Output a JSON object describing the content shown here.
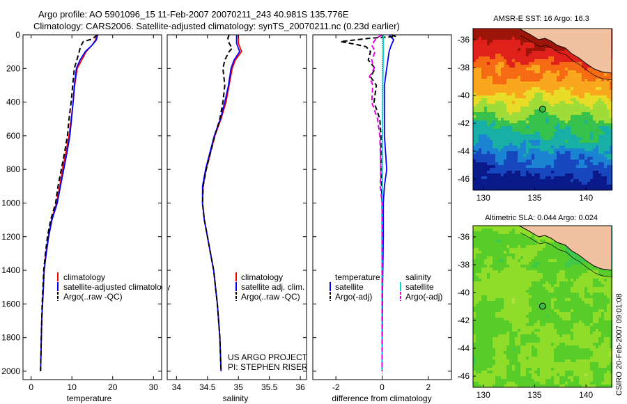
{
  "figure": {
    "title_line1": "Argo profile: AO 5901096_15 11-Feb-2007 20070211_243 40.981S 135.776E",
    "title_line2": "Climatology: CARS2006. Satellite-adjusted climatology: synTS_20070211.nc (0.23d earlier)",
    "credit": "CSIRO 20-Feb-2007 09:01:08"
  },
  "chart_data": [
    {
      "type": "line",
      "id": "temperature",
      "xlabel": "temperature",
      "ylabel": "",
      "xlim": [
        -2,
        32
      ],
      "ylim": [
        2050,
        0
      ],
      "xticks": [
        0,
        10,
        20,
        30
      ],
      "yticks": [
        0,
        200,
        400,
        600,
        800,
        1000,
        1200,
        1400,
        1600,
        1800,
        2000
      ],
      "legend": {
        "position": "lower-right",
        "entries": [
          "climatology",
          "satellite-adjusted climatology",
          "Argo(..raw -QC)"
        ]
      },
      "series": [
        {
          "name": "climatology",
          "color": "#ff0000",
          "dash": "solid",
          "points": [
            [
              16.0,
              0
            ],
            [
              15.8,
              30
            ],
            [
              15.0,
              60
            ],
            [
              13.5,
              100
            ],
            [
              12.4,
              150
            ],
            [
              11.3,
              200
            ],
            [
              10.7,
              300
            ],
            [
              10.3,
              400
            ],
            [
              9.8,
              500
            ],
            [
              9.3,
              600
            ],
            [
              8.5,
              700
            ],
            [
              7.7,
              800
            ],
            [
              7.0,
              900
            ],
            [
              6.2,
              1000
            ],
            [
              5.0,
              1100
            ],
            [
              4.2,
              1200
            ],
            [
              3.6,
              1300
            ],
            [
              3.2,
              1400
            ],
            [
              3.0,
              1500
            ],
            [
              2.8,
              1600
            ],
            [
              2.6,
              1700
            ],
            [
              2.5,
              1800
            ],
            [
              2.4,
              1900
            ],
            [
              2.3,
              2000
            ]
          ]
        },
        {
          "name": "satellite-adjusted climatology",
          "color": "#0000ff",
          "dash": "solid",
          "points": [
            [
              16.3,
              0
            ],
            [
              16.0,
              30
            ],
            [
              15.0,
              60
            ],
            [
              13.3,
              100
            ],
            [
              12.0,
              150
            ],
            [
              11.1,
              200
            ],
            [
              10.6,
              300
            ],
            [
              10.3,
              400
            ],
            [
              9.9,
              500
            ],
            [
              9.5,
              600
            ],
            [
              8.8,
              700
            ],
            [
              8.0,
              800
            ],
            [
              7.2,
              900
            ],
            [
              6.4,
              1000
            ],
            [
              5.1,
              1100
            ],
            [
              4.3,
              1200
            ],
            [
              3.7,
              1300
            ],
            [
              3.2,
              1400
            ],
            [
              3.0,
              1500
            ],
            [
              2.8,
              1600
            ],
            [
              2.6,
              1700
            ],
            [
              2.5,
              1800
            ],
            [
              2.4,
              1900
            ],
            [
              2.3,
              2000
            ]
          ]
        },
        {
          "name": "Argo(..raw -QC)",
          "color": "#000000",
          "dash": "7,4",
          "points": [
            [
              16.2,
              0
            ],
            [
              15.0,
              25
            ],
            [
              12.8,
              40
            ],
            [
              12.1,
              70
            ],
            [
              11.8,
              100
            ],
            [
              11.2,
              150
            ],
            [
              10.6,
              200
            ],
            [
              10.2,
              300
            ],
            [
              9.8,
              400
            ],
            [
              9.3,
              500
            ],
            [
              8.9,
              600
            ],
            [
              8.2,
              700
            ],
            [
              7.4,
              800
            ],
            [
              6.6,
              900
            ],
            [
              6.0,
              1000
            ],
            [
              4.8,
              1100
            ],
            [
              4.0,
              1200
            ],
            [
              3.5,
              1300
            ],
            [
              3.1,
              1400
            ],
            [
              2.9,
              1500
            ],
            [
              2.7,
              1600
            ],
            [
              2.6,
              1700
            ],
            [
              2.5,
              1800
            ],
            [
              2.4,
              1900
            ],
            [
              2.3,
              2000
            ]
          ]
        }
      ]
    },
    {
      "type": "line",
      "id": "salinity",
      "xlabel": "salinity",
      "ylabel": "",
      "xlim": [
        33.85,
        36.1
      ],
      "ylim": [
        2050,
        0
      ],
      "xticks": [
        34,
        34.5,
        35,
        35.5,
        36
      ],
      "xtick_labels": [
        "34",
        "34.5",
        "35",
        "35.5",
        "36"
      ],
      "yticks": [
        0,
        200,
        400,
        600,
        800,
        1000,
        1200,
        1400,
        1600,
        1800,
        2000
      ],
      "legend": {
        "position": "lower-right",
        "entries": [
          "climatology",
          "satellite adj. clim.",
          "Argo(..raw -QC)"
        ]
      },
      "annotation_lines": [
        "US ARGO PROJECT",
        "PI: STEPHEN RISER"
      ],
      "series": [
        {
          "name": "climatology",
          "color": "#ff0000",
          "dash": "solid",
          "points": [
            [
              35.0,
              0
            ],
            [
              35.0,
              50
            ],
            [
              35.05,
              100
            ],
            [
              34.95,
              150
            ],
            [
              34.9,
              200
            ],
            [
              34.85,
              300
            ],
            [
              34.8,
              400
            ],
            [
              34.72,
              500
            ],
            [
              34.62,
              600
            ],
            [
              34.55,
              700
            ],
            [
              34.48,
              800
            ],
            [
              34.43,
              900
            ],
            [
              34.42,
              1000
            ],
            [
              34.45,
              1100
            ],
            [
              34.5,
              1200
            ],
            [
              34.55,
              1300
            ],
            [
              34.6,
              1400
            ],
            [
              34.63,
              1500
            ],
            [
              34.66,
              1600
            ],
            [
              34.68,
              1700
            ],
            [
              34.7,
              1800
            ],
            [
              34.71,
              1900
            ],
            [
              34.72,
              2000
            ]
          ]
        },
        {
          "name": "satellite adj. clim.",
          "color": "#0000ff",
          "dash": "solid",
          "points": [
            [
              34.97,
              0
            ],
            [
              34.97,
              50
            ],
            [
              35.02,
              100
            ],
            [
              34.93,
              150
            ],
            [
              34.88,
              200
            ],
            [
              34.84,
              300
            ],
            [
              34.78,
              400
            ],
            [
              34.71,
              500
            ],
            [
              34.61,
              600
            ],
            [
              34.54,
              700
            ],
            [
              34.47,
              800
            ],
            [
              34.42,
              900
            ],
            [
              34.42,
              1000
            ],
            [
              34.45,
              1100
            ],
            [
              34.5,
              1200
            ],
            [
              34.55,
              1300
            ],
            [
              34.6,
              1400
            ],
            [
              34.63,
              1500
            ],
            [
              34.66,
              1600
            ],
            [
              34.68,
              1700
            ],
            [
              34.7,
              1800
            ],
            [
              34.71,
              1900
            ],
            [
              34.72,
              2000
            ]
          ]
        },
        {
          "name": "Argo(..raw -QC)",
          "color": "#000000",
          "dash": "7,4",
          "points": [
            [
              34.85,
              0
            ],
            [
              34.83,
              20
            ],
            [
              34.85,
              50
            ],
            [
              34.9,
              80
            ],
            [
              34.85,
              100
            ],
            [
              34.78,
              150
            ],
            [
              34.75,
              200
            ],
            [
              34.78,
              300
            ],
            [
              34.75,
              400
            ],
            [
              34.7,
              500
            ],
            [
              34.62,
              600
            ],
            [
              34.55,
              700
            ],
            [
              34.48,
              800
            ],
            [
              34.43,
              900
            ],
            [
              34.42,
              1000
            ],
            [
              34.45,
              1100
            ],
            [
              34.5,
              1200
            ],
            [
              34.55,
              1300
            ],
            [
              34.6,
              1400
            ],
            [
              34.63,
              1500
            ],
            [
              34.66,
              1600
            ],
            [
              34.68,
              1700
            ],
            [
              34.7,
              1800
            ],
            [
              34.71,
              1900
            ],
            [
              34.72,
              2000
            ]
          ]
        }
      ]
    },
    {
      "type": "line",
      "id": "difference",
      "xlabel": "difference from climatology",
      "ylabel": "",
      "xlim": [
        -3,
        3
      ],
      "ylim": [
        2050,
        0
      ],
      "xticks": [
        -2,
        0,
        2
      ],
      "yticks": [
        0,
        200,
        400,
        600,
        800,
        1000,
        1200,
        1400,
        1600,
        1800,
        2000
      ],
      "legend": {
        "position": "lower",
        "columns": [
          {
            "heading": "temperature",
            "entries": [
              "satellite",
              "Argo(-adj)"
            ]
          },
          {
            "heading": "salinity",
            "entries": [
              "satellite",
              "Argo(-adj)"
            ]
          }
        ]
      },
      "series": [
        {
          "name": "temperature satellite",
          "color": "#0000ff",
          "dash": "solid",
          "points": [
            [
              0.3,
              0
            ],
            [
              0.5,
              30
            ],
            [
              0.4,
              60
            ],
            [
              0.3,
              100
            ],
            [
              0.2,
              200
            ],
            [
              0.1,
              300
            ],
            [
              0.1,
              400
            ],
            [
              0.1,
              600
            ],
            [
              0.15,
              700
            ],
            [
              0.2,
              800
            ],
            [
              0.1,
              900
            ],
            [
              0.05,
              1000
            ],
            [
              0.05,
              1200
            ],
            [
              0.02,
              1500
            ],
            [
              0.0,
              2000
            ]
          ]
        },
        {
          "name": "temperature Argo(-adj)",
          "color": "#000000",
          "dash": "7,4",
          "points": [
            [
              0.4,
              0
            ],
            [
              0.6,
              10
            ],
            [
              -0.5,
              20
            ],
            [
              -1.8,
              40
            ],
            [
              -1.2,
              55
            ],
            [
              -0.7,
              70
            ],
            [
              -0.5,
              100
            ],
            [
              -0.6,
              150
            ],
            [
              -0.3,
              200
            ],
            [
              -0.5,
              250
            ],
            [
              -0.25,
              300
            ],
            [
              -0.35,
              400
            ],
            [
              -0.1,
              500
            ],
            [
              -0.05,
              600
            ],
            [
              -0.05,
              800
            ],
            [
              0.0,
              1000
            ],
            [
              0.0,
              1500
            ],
            [
              0.0,
              2000
            ]
          ]
        },
        {
          "name": "salinity satellite",
          "color": "#00d8d8",
          "dash": "solid",
          "points": [
            [
              0.05,
              0
            ],
            [
              0.05,
              50
            ],
            [
              0.05,
              100
            ],
            [
              0.04,
              200
            ],
            [
              0.03,
              300
            ],
            [
              0.02,
              500
            ],
            [
              0.02,
              800
            ],
            [
              0.01,
              1000
            ],
            [
              0.0,
              1500
            ],
            [
              0.0,
              2000
            ]
          ]
        },
        {
          "name": "salinity Argo(-adj)",
          "color": "#e000e0",
          "dash": "7,4",
          "points": [
            [
              0.0,
              0
            ],
            [
              -0.25,
              20
            ],
            [
              -0.45,
              60
            ],
            [
              -0.3,
              100
            ],
            [
              -0.45,
              150
            ],
            [
              -0.35,
              200
            ],
            [
              -0.55,
              250
            ],
            [
              -0.4,
              300
            ],
            [
              -0.45,
              400
            ],
            [
              -0.2,
              500
            ],
            [
              -0.1,
              600
            ],
            [
              -0.05,
              800
            ],
            [
              -0.08,
              900
            ],
            [
              0.0,
              1000
            ],
            [
              0.0,
              1500
            ],
            [
              0.0,
              2000
            ]
          ]
        }
      ]
    },
    {
      "type": "heatmap",
      "id": "sst-map",
      "title": "AMSR-E SST: 16 Argo: 16.3",
      "xlim": [
        129,
        142.5
      ],
      "ylim": [
        -46.8,
        -35.2
      ],
      "xticks": [
        130,
        135,
        140
      ],
      "yticks": [
        -36,
        -38,
        -40,
        -42,
        -44,
        -46
      ],
      "marker": {
        "lon": 135.776,
        "lat": -40.981
      },
      "color_bands": [
        "#9c1508",
        "#e0201a",
        "#f56a12",
        "#f9a81e",
        "#e9dc26",
        "#9fdc38",
        "#36c24c",
        "#18b0a6",
        "#1a84d2",
        "#1848c0",
        "#0a1a8a"
      ],
      "land_color": "#f2c2a0"
    },
    {
      "type": "heatmap",
      "id": "sla-map",
      "title": "Altimetric SLA: 0.044 Argo: 0.024",
      "xlim": [
        129,
        142.5
      ],
      "ylim": [
        -46.8,
        -35.2
      ],
      "xticks": [
        130,
        135,
        140
      ],
      "yticks": [
        -36,
        -38,
        -40,
        -42,
        -44,
        -46
      ],
      "marker": {
        "lon": 135.776,
        "lat": -40.981
      },
      "color_bands": [
        "#b0e040",
        "#8fdc2a",
        "#58cc28",
        "#40c848",
        "#2eb888",
        "#2aa6a8"
      ],
      "land_color": "#f2c2a0"
    }
  ]
}
